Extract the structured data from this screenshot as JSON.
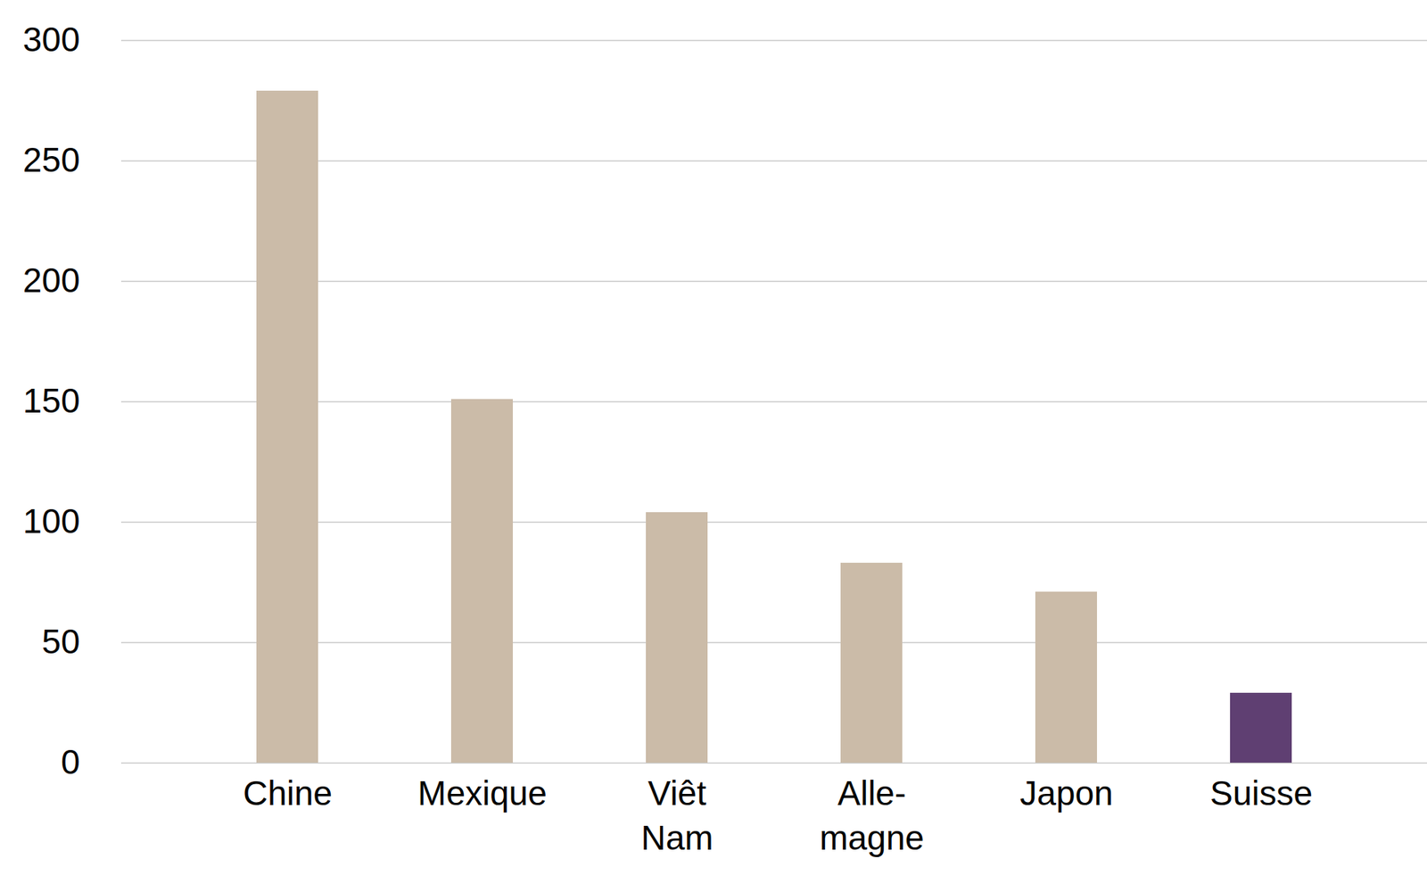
{
  "chart_data": {
    "type": "bar",
    "categories": [
      "Chine",
      "Mexique",
      "Viêt\nNam",
      "Alle-\nmagne",
      "Japon",
      "Suisse"
    ],
    "values": [
      279,
      151,
      104,
      83,
      71,
      29
    ],
    "colors": [
      "#cbbba8",
      "#cbbba8",
      "#cbbba8",
      "#cbbba8",
      "#cbbba8",
      "#5f3f72"
    ],
    "ylim": [
      0,
      300
    ],
    "yticks": [
      0,
      50,
      100,
      150,
      200,
      250,
      300
    ],
    "grid": true
  }
}
